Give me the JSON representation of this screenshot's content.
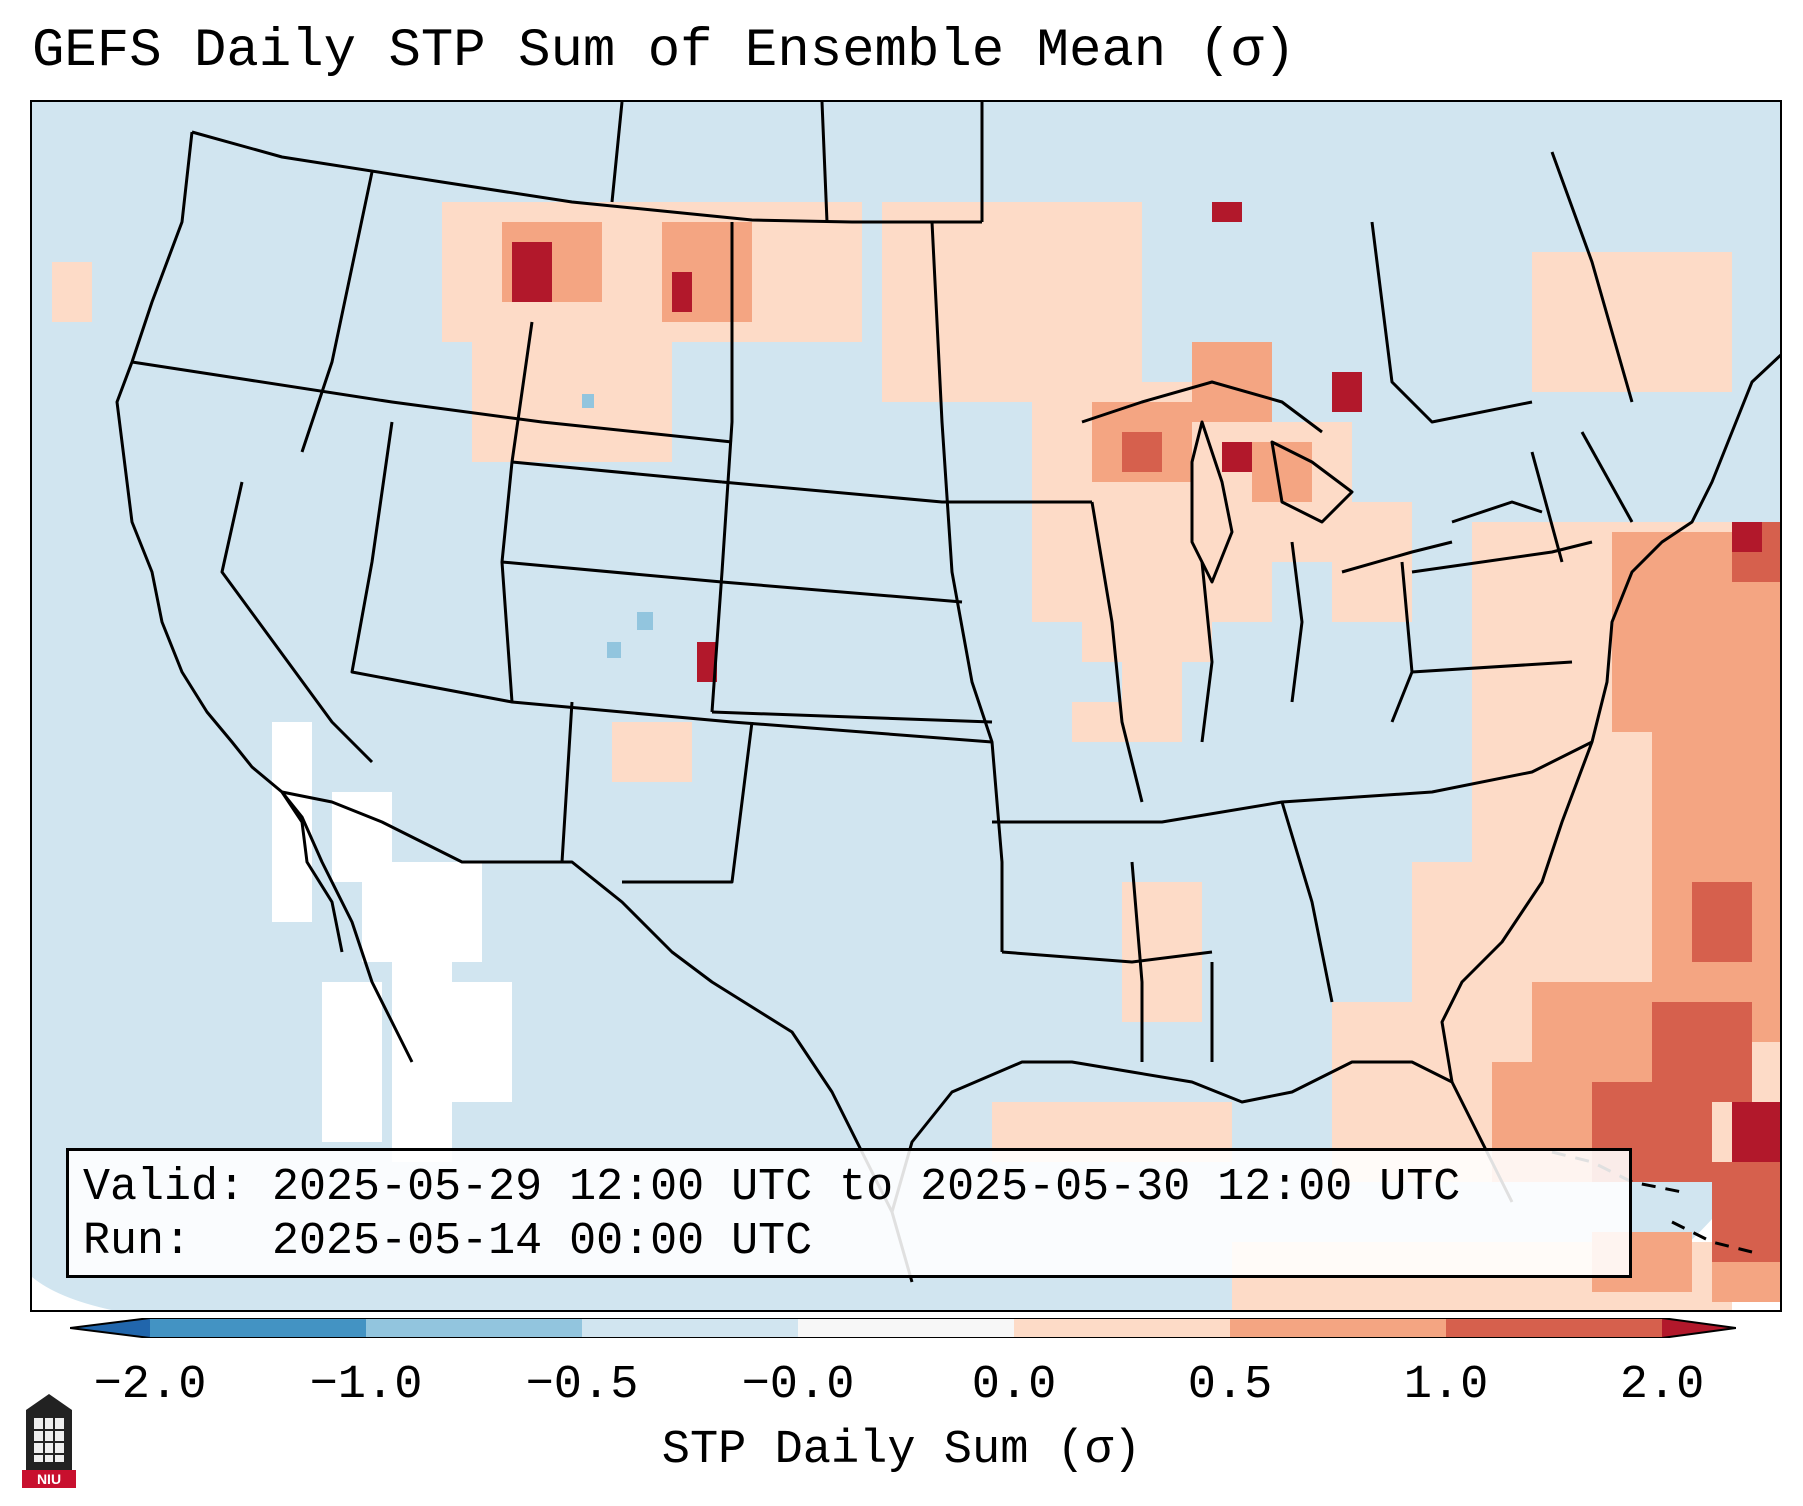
{
  "title": "GEFS Daily STP Sum of Ensemble Mean (σ)",
  "info": {
    "valid_label": "Valid:",
    "valid_value": "2025-05-29 12:00 UTC to 2025-05-30 12:00 UTC",
    "run_label": "Run:",
    "run_value": "2025-05-14 00:00 UTC"
  },
  "colorbar": {
    "label": "STP Daily Sum (σ)",
    "ticks": [
      "−2.0",
      "−1.0",
      "−0.5",
      "−0.0",
      "0.0",
      "0.5",
      "1.0",
      "2.0"
    ],
    "bins": [
      {
        "range": "< -2.0",
        "color": "#2166ac"
      },
      {
        "range": "-2.0 to -1.0",
        "color": "#4393c3"
      },
      {
        "range": "-1.0 to -0.5",
        "color": "#92c5de"
      },
      {
        "range": "-0.5 to -0.0",
        "color": "#d1e5f0"
      },
      {
        "range": "-0.0 to 0.0",
        "color": "#f7f7f7"
      },
      {
        "range": "0.0 to 0.5",
        "color": "#fddbc7"
      },
      {
        "range": "0.5 to 1.0",
        "color": "#f4a582"
      },
      {
        "range": "1.0 to 2.0",
        "color": "#d6604d"
      },
      {
        "range": "> 2.0",
        "color": "#b2182b"
      }
    ]
  },
  "logo": {
    "text": "NIU",
    "color": "#c8102e"
  }
}
